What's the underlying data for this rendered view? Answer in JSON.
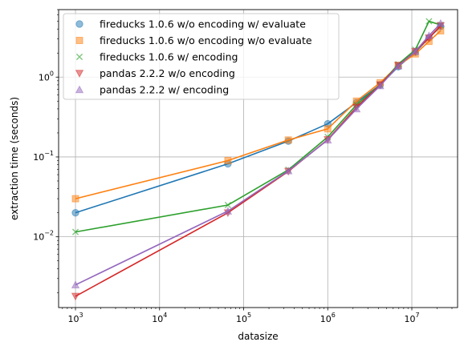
{
  "chart_data": {
    "type": "line",
    "xlabel": "datasize",
    "ylabel": "extraction time (seconds)",
    "xscale": "log",
    "yscale": "log",
    "xlim": [
      630,
      35000000
    ],
    "ylim": [
      0.0013,
      7.0
    ],
    "grid": true,
    "legend_position": "top-left",
    "x_ticks": [
      {
        "value": 1000,
        "base": "10",
        "exp": "3"
      },
      {
        "value": 10000,
        "base": "10",
        "exp": "4"
      },
      {
        "value": 100000,
        "base": "10",
        "exp": "5"
      },
      {
        "value": 1000000,
        "base": "10",
        "exp": "6"
      },
      {
        "value": 10000000,
        "base": "10",
        "exp": "7"
      }
    ],
    "y_ticks": [
      {
        "value": 0.01,
        "base": "10",
        "exp": "−2"
      },
      {
        "value": 0.1,
        "base": "10",
        "exp": "−1"
      },
      {
        "value": 1,
        "base": "10",
        "exp": "0"
      }
    ],
    "x": [
      1000,
      65000,
      340000,
      1000000,
      2200000,
      4200000,
      6900000,
      11000000,
      16000000,
      22000000
    ],
    "series": [
      {
        "name": "fireducks 1.0.6 w/o encoding w/ evaluate",
        "marker": "circle",
        "color": "#1f77b4",
        "values": [
          0.02,
          0.082,
          0.158,
          0.26,
          0.48,
          0.8,
          1.35,
          2.05,
          3.1,
          4.3
        ]
      },
      {
        "name": "fireducks 1.0.6 w/o encoding w/o evaluate",
        "marker": "square",
        "color": "#ff7f0e",
        "values": [
          0.03,
          0.09,
          0.163,
          0.225,
          0.5,
          0.85,
          1.4,
          1.95,
          2.8,
          3.8
        ]
      },
      {
        "name": "fireducks 1.0.6 w/ encoding",
        "marker": "x",
        "color": "#2ca02c",
        "values": [
          0.0115,
          0.025,
          0.069,
          0.178,
          0.45,
          0.8,
          1.45,
          2.2,
          5.0,
          4.5
        ]
      },
      {
        "name": "pandas 2.2.2 w/o encoding",
        "marker": "triangle-down",
        "color": "#d62728",
        "values": [
          0.0018,
          0.02,
          0.066,
          0.165,
          0.42,
          0.8,
          1.4,
          2.1,
          3.1,
          4.4
        ]
      },
      {
        "name": "pandas 2.2.2 w/ encoding",
        "marker": "triangle-up",
        "color": "#9467bd",
        "values": [
          0.0025,
          0.021,
          0.067,
          0.163,
          0.4,
          0.78,
          1.38,
          2.1,
          3.3,
          4.7
        ]
      }
    ]
  }
}
